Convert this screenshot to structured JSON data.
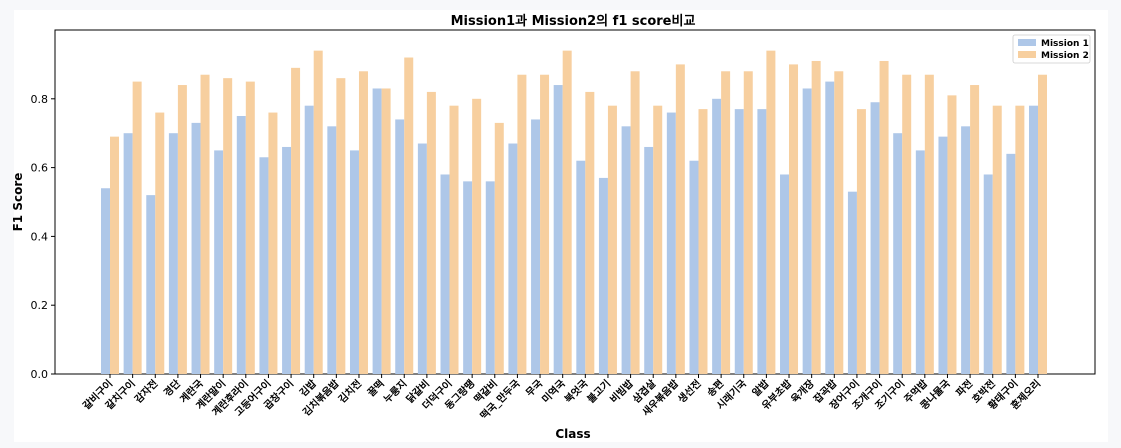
{
  "chart_data": {
    "type": "bar",
    "title": "Mission1과 Mission2의 f1 score비교",
    "xlabel": "Class",
    "ylabel": "F1 Score",
    "ylim": [
      0,
      1.0
    ],
    "yticks": [
      "0.0",
      "0.2",
      "0.4",
      "0.6",
      "0.8"
    ],
    "legend_position": "top-right",
    "colors": {
      "Mission 1": "#aec7e8",
      "Mission 2": "#f7cf9f"
    },
    "categories": [
      "갈비구이",
      "갈치구이",
      "감자전",
      "경단",
      "계란국",
      "계란말이",
      "계란후라이",
      "고등어구이",
      "곱창구이",
      "김밥",
      "김치볶음밥",
      "김치전",
      "꿀떡",
      "누룽지",
      "닭갈비",
      "더덕구이",
      "동그랑땡",
      "떡갈비",
      "떡국_만두국",
      "무국",
      "미역국",
      "북엇국",
      "불고기",
      "비빔밥",
      "삼겹살",
      "새우볶음밥",
      "생선전",
      "송편",
      "시래기국",
      "알밥",
      "유부초밥",
      "육개장",
      "잡곡밥",
      "장어구이",
      "조개구이",
      "조기구이",
      "주먹밥",
      "콩나물국",
      "파전",
      "호박전",
      "황태구이",
      "훈제오리"
    ],
    "series": [
      {
        "name": "Mission 1",
        "values": [
          0.54,
          0.7,
          0.52,
          0.7,
          0.73,
          0.65,
          0.75,
          0.63,
          0.66,
          0.78,
          0.72,
          0.65,
          0.83,
          0.74,
          0.67,
          0.58,
          0.56,
          0.56,
          0.67,
          0.74,
          0.84,
          0.62,
          0.57,
          0.72,
          0.66,
          0.76,
          0.62,
          0.8,
          0.77,
          0.77,
          0.58,
          0.83,
          0.85,
          0.53,
          0.79,
          0.7,
          0.65,
          0.69,
          0.72,
          0.58,
          0.64,
          0.78
        ]
      },
      {
        "name": "Mission 2",
        "values": [
          0.69,
          0.85,
          0.76,
          0.84,
          0.87,
          0.86,
          0.85,
          0.76,
          0.89,
          0.94,
          0.86,
          0.88,
          0.83,
          0.92,
          0.82,
          0.78,
          0.8,
          0.73,
          0.87,
          0.87,
          0.94,
          0.82,
          0.78,
          0.88,
          0.78,
          0.9,
          0.77,
          0.88,
          0.88,
          0.94,
          0.9,
          0.91,
          0.88,
          0.77,
          0.91,
          0.87,
          0.87,
          0.81,
          0.84,
          0.78,
          0.78,
          0.87
        ]
      }
    ]
  }
}
